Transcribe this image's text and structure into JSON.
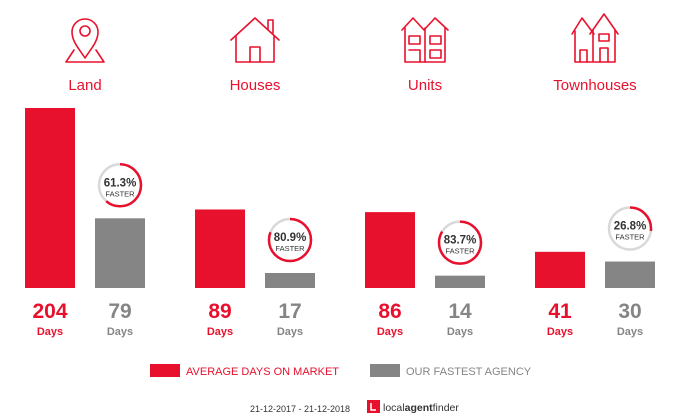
{
  "colors": {
    "red": "#e8112d",
    "grey": "#858585",
    "ring_track": "#d9d9d9",
    "text_dark": "#333333",
    "icon_outline": "#e8112d"
  },
  "icons": [
    "map-pin-icon",
    "house-icon",
    "unit-building-icon",
    "townhouse-icon"
  ],
  "chart_data": {
    "type": "bar",
    "categories": [
      "Land",
      "Houses",
      "Units",
      "Townhouses"
    ],
    "series": [
      {
        "name": "AVERAGE DAYS ON MARKET",
        "values": [
          204,
          89,
          86,
          41
        ],
        "color": "#e8112d"
      },
      {
        "name": "OUR FASTEST AGENCY",
        "values": [
          79,
          17,
          14,
          30
        ],
        "color": "#858585"
      }
    ],
    "faster_percent": [
      61.3,
      80.9,
      83.7,
      26.8
    ],
    "faster_labels": [
      "61.3%",
      "80.9%",
      "83.7%",
      "26.8%"
    ],
    "faster_word": "FASTER",
    "value_unit": "Days",
    "ylim": [
      0,
      204
    ]
  },
  "footer": {
    "date_range": "21-12-2017 - 21-12-2018",
    "brand_prefix": "local",
    "brand_middle": "agent",
    "brand_suffix": "finder"
  }
}
